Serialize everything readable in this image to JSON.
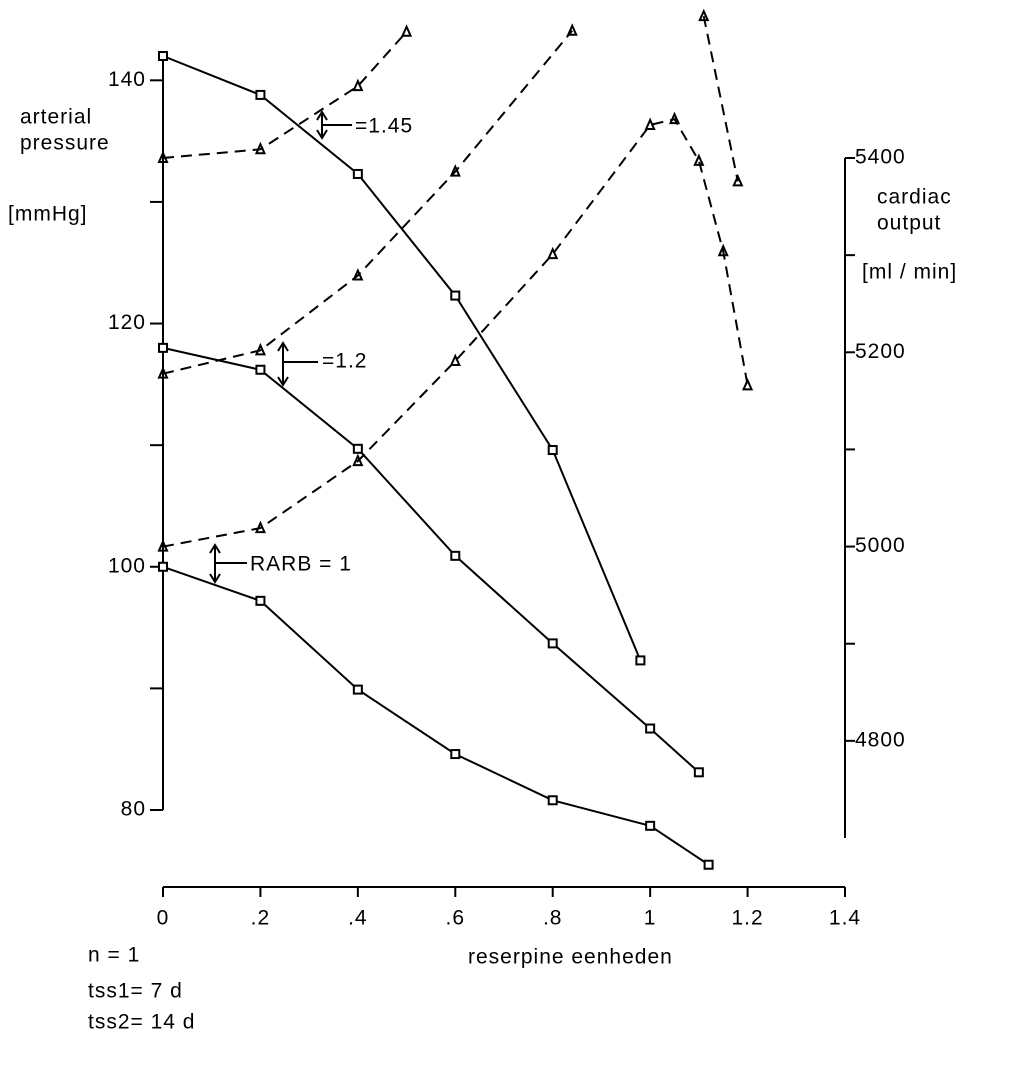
{
  "chart_data": {
    "type": "line",
    "y_label": [
      "arterial",
      "pressure",
      "[mmHg]"
    ],
    "y2_label": [
      "cardiac",
      "output",
      "[ml / min]"
    ],
    "x_label": "reserpine eenheden",
    "notes": [
      "n = 1",
      "tss1= 7 d",
      "tss2= 14 d"
    ],
    "annotations": [
      "=1.45",
      "=1.2",
      "RARB = 1"
    ],
    "xlim": [
      0,
      1.4
    ],
    "xticks": [
      0,
      {
        "value": 0.2,
        "label": ".2"
      },
      {
        "value": 0.4,
        "label": ".4"
      },
      {
        "value": 0.6,
        "label": ".6"
      },
      {
        "value": 0.8,
        "label": ".8"
      },
      1,
      1.2,
      1.4
    ],
    "ylim": [
      80,
      142
    ],
    "yticks": [
      80,
      100,
      120,
      140
    ],
    "yminorticks": [
      90,
      110,
      130
    ],
    "y2lim": [
      4700,
      5400
    ],
    "y2ticks": [
      4800,
      5000,
      5200,
      5400
    ],
    "y2minorticks": [
      4900,
      5100,
      5300
    ],
    "color": "#000000",
    "series": [
      {
        "style": "solid",
        "marker": "square",
        "x": [
          0,
          0.2,
          0.4,
          0.6,
          0.8,
          0.98
        ],
        "values": [
          142,
          138.8,
          132.3,
          122.3,
          109.6,
          92.3
        ]
      },
      {
        "style": "solid",
        "marker": "square",
        "x": [
          0,
          0.2,
          0.4,
          0.6,
          0.8,
          1.0,
          1.1
        ],
        "values": [
          118,
          116.2,
          109.7,
          100.9,
          93.7,
          86.7,
          83.1
        ]
      },
      {
        "style": "solid",
        "marker": "square",
        "x": [
          0,
          0.2,
          0.4,
          0.6,
          0.8,
          1.0,
          1.12
        ],
        "values": [
          100,
          97.2,
          89.9,
          84.6,
          80.8,
          78.7,
          75.5
        ]
      },
      {
        "style": "dashed",
        "marker": "triangle",
        "axis": "y2",
        "x": [
          0,
          0.2,
          0.4,
          0.5
        ],
        "values": [
          5400,
          5409,
          5474,
          5530
        ]
      },
      {
        "style": "dashed",
        "marker": "triangle",
        "axis": "y2",
        "x": [
          0,
          0.2,
          0.4,
          0.6,
          0.84,
          1.0,
          1.11,
          1.18
        ],
        "values": [
          5178,
          5202,
          5279,
          5386,
          5531,
          null,
          5546,
          5376
        ]
      },
      {
        "style": "dashed",
        "marker": "triangle",
        "axis": "y2",
        "x": [
          0,
          0.2,
          0.4,
          0.6,
          0.8,
          1.0,
          1.05,
          1.1,
          1.15,
          1.2
        ],
        "values": [
          5000,
          5019,
          5088,
          5191,
          5301,
          5434,
          5440,
          5397,
          5304,
          5166
        ]
      }
    ]
  }
}
